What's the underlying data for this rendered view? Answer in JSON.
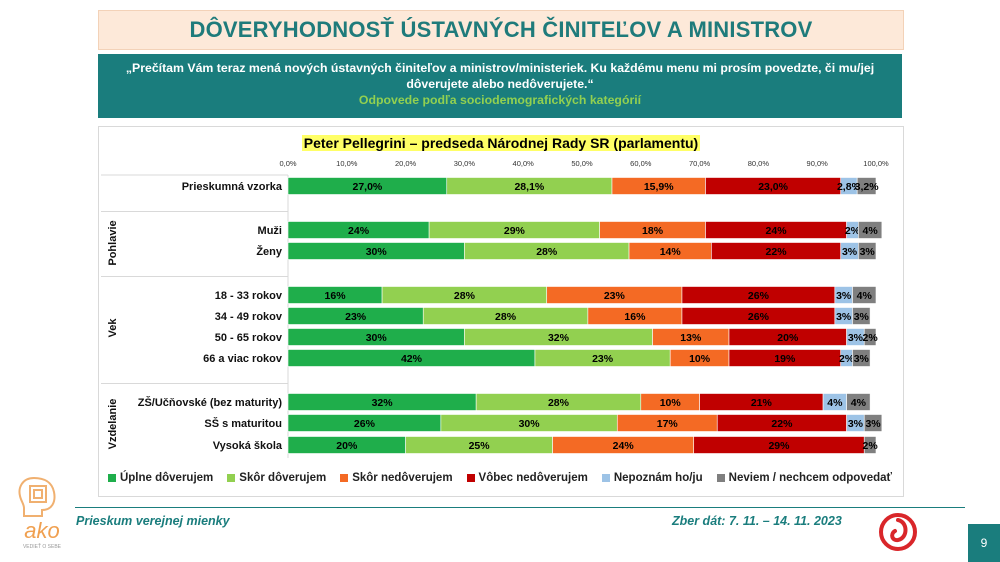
{
  "title": "DÔVERYHODNOSŤ ÚSTAVNÝCH ČINITEĽOV A MINISTROV",
  "question": "„Prečítam Vám teraz mená nových ústavných činiteľov a ministrov/ministeriek. Ku každému menu mi prosím povedzte, či mu/jej dôverujete alebo nedôverujete.“",
  "subtitle": "Odpovede podľa sociodemografických kategórií",
  "footer": {
    "left": "Prieskum verejnej mienky",
    "right": "Zber dát: 7. 11. – 14. 11. 2023",
    "page": "9"
  },
  "logo": {
    "text": "ako",
    "tagline": "VEDIEŤ O SEBE"
  },
  "chart_data": {
    "type": "bar",
    "orientation": "horizontal",
    "stacked": true,
    "title": "Peter Pellegrini – predseda Národnej Rady SR (parlamentu)",
    "xlim": [
      0,
      100
    ],
    "x_ticks": [
      "0,0%",
      "10,0%",
      "20,0%",
      "30,0%",
      "40,0%",
      "50,0%",
      "60,0%",
      "70,0%",
      "80,0%",
      "90,0%",
      "100,0%"
    ],
    "grid": false,
    "legend_position": "bottom",
    "series": [
      {
        "name": "Úplne dôverujem",
        "color": "#1fae4b"
      },
      {
        "name": "Skôr dôverujem",
        "color": "#92d050"
      },
      {
        "name": "Skôr nedôverujem",
        "color": "#f46a24"
      },
      {
        "name": "Vôbec nedôverujem",
        "color": "#c00000"
      },
      {
        "name": "Nepoznám ho/ju",
        "color": "#9dc3e6"
      },
      {
        "name": "Neviem / nechcem odpovedať",
        "color": "#7f7f7f"
      }
    ],
    "groups": [
      {
        "label": "",
        "rows": [
          {
            "label": "Prieskumná vzorka",
            "values": [
              27.0,
              28.1,
              15.9,
              23.0,
              2.8,
              3.2
            ],
            "labels": [
              "27,0%",
              "28,1%",
              "15,9%",
              "23,0%",
              "2,8%",
              "3,2%"
            ]
          }
        ]
      },
      {
        "label": "Pohlavie",
        "rows": [
          {
            "label": "Muži",
            "values": [
              24,
              29,
              18,
              24,
              2,
              4
            ],
            "labels": [
              "24%",
              "29%",
              "18%",
              "24%",
              "2%",
              "4%"
            ]
          },
          {
            "label": "Ženy",
            "values": [
              30,
              28,
              14,
              22,
              3,
              3
            ],
            "labels": [
              "30%",
              "28%",
              "14%",
              "22%",
              "3%",
              "3%"
            ]
          }
        ]
      },
      {
        "label": "Vek",
        "rows": [
          {
            "label": "18 - 33 rokov",
            "values": [
              16,
              28,
              23,
              26,
              3,
              4
            ],
            "labels": [
              "16%",
              "28%",
              "23%",
              "26%",
              "3%",
              "4%"
            ]
          },
          {
            "label": "34 - 49 rokov",
            "values": [
              23,
              28,
              16,
              26,
              3,
              3
            ],
            "labels": [
              "23%",
              "28%",
              "16%",
              "26%",
              "3%",
              "3%"
            ]
          },
          {
            "label": "50 - 65 rokov",
            "values": [
              30,
              32,
              13,
              20,
              3,
              2
            ],
            "labels": [
              "30%",
              "32%",
              "13%",
              "20%",
              "3%",
              "2%"
            ]
          },
          {
            "label": "66 a viac rokov",
            "values": [
              42,
              23,
              10,
              19,
              2,
              3
            ],
            "labels": [
              "42%",
              "23%",
              "10%",
              "19%",
              "2%",
              "3%"
            ]
          }
        ]
      },
      {
        "label": "Vzdelanie",
        "rows": [
          {
            "label": "ZŠ/Učňovské (bez maturity)",
            "values": [
              32,
              28,
              10,
              21,
              4,
              4
            ],
            "labels": [
              "32%",
              "28%",
              "10%",
              "21%",
              "4%",
              "4%"
            ]
          },
          {
            "label": "SŠ s maturitou",
            "values": [
              26,
              30,
              17,
              22,
              3,
              3
            ],
            "labels": [
              "26%",
              "30%",
              "17%",
              "22%",
              "3%",
              "3%"
            ]
          },
          {
            "label": "Vysoká škola",
            "values": [
              20,
              25,
              24,
              29,
              0,
              2
            ],
            "labels": [
              "20%",
              "25%",
              "24%",
              "29%",
              "",
              "2%"
            ]
          }
        ]
      }
    ]
  }
}
